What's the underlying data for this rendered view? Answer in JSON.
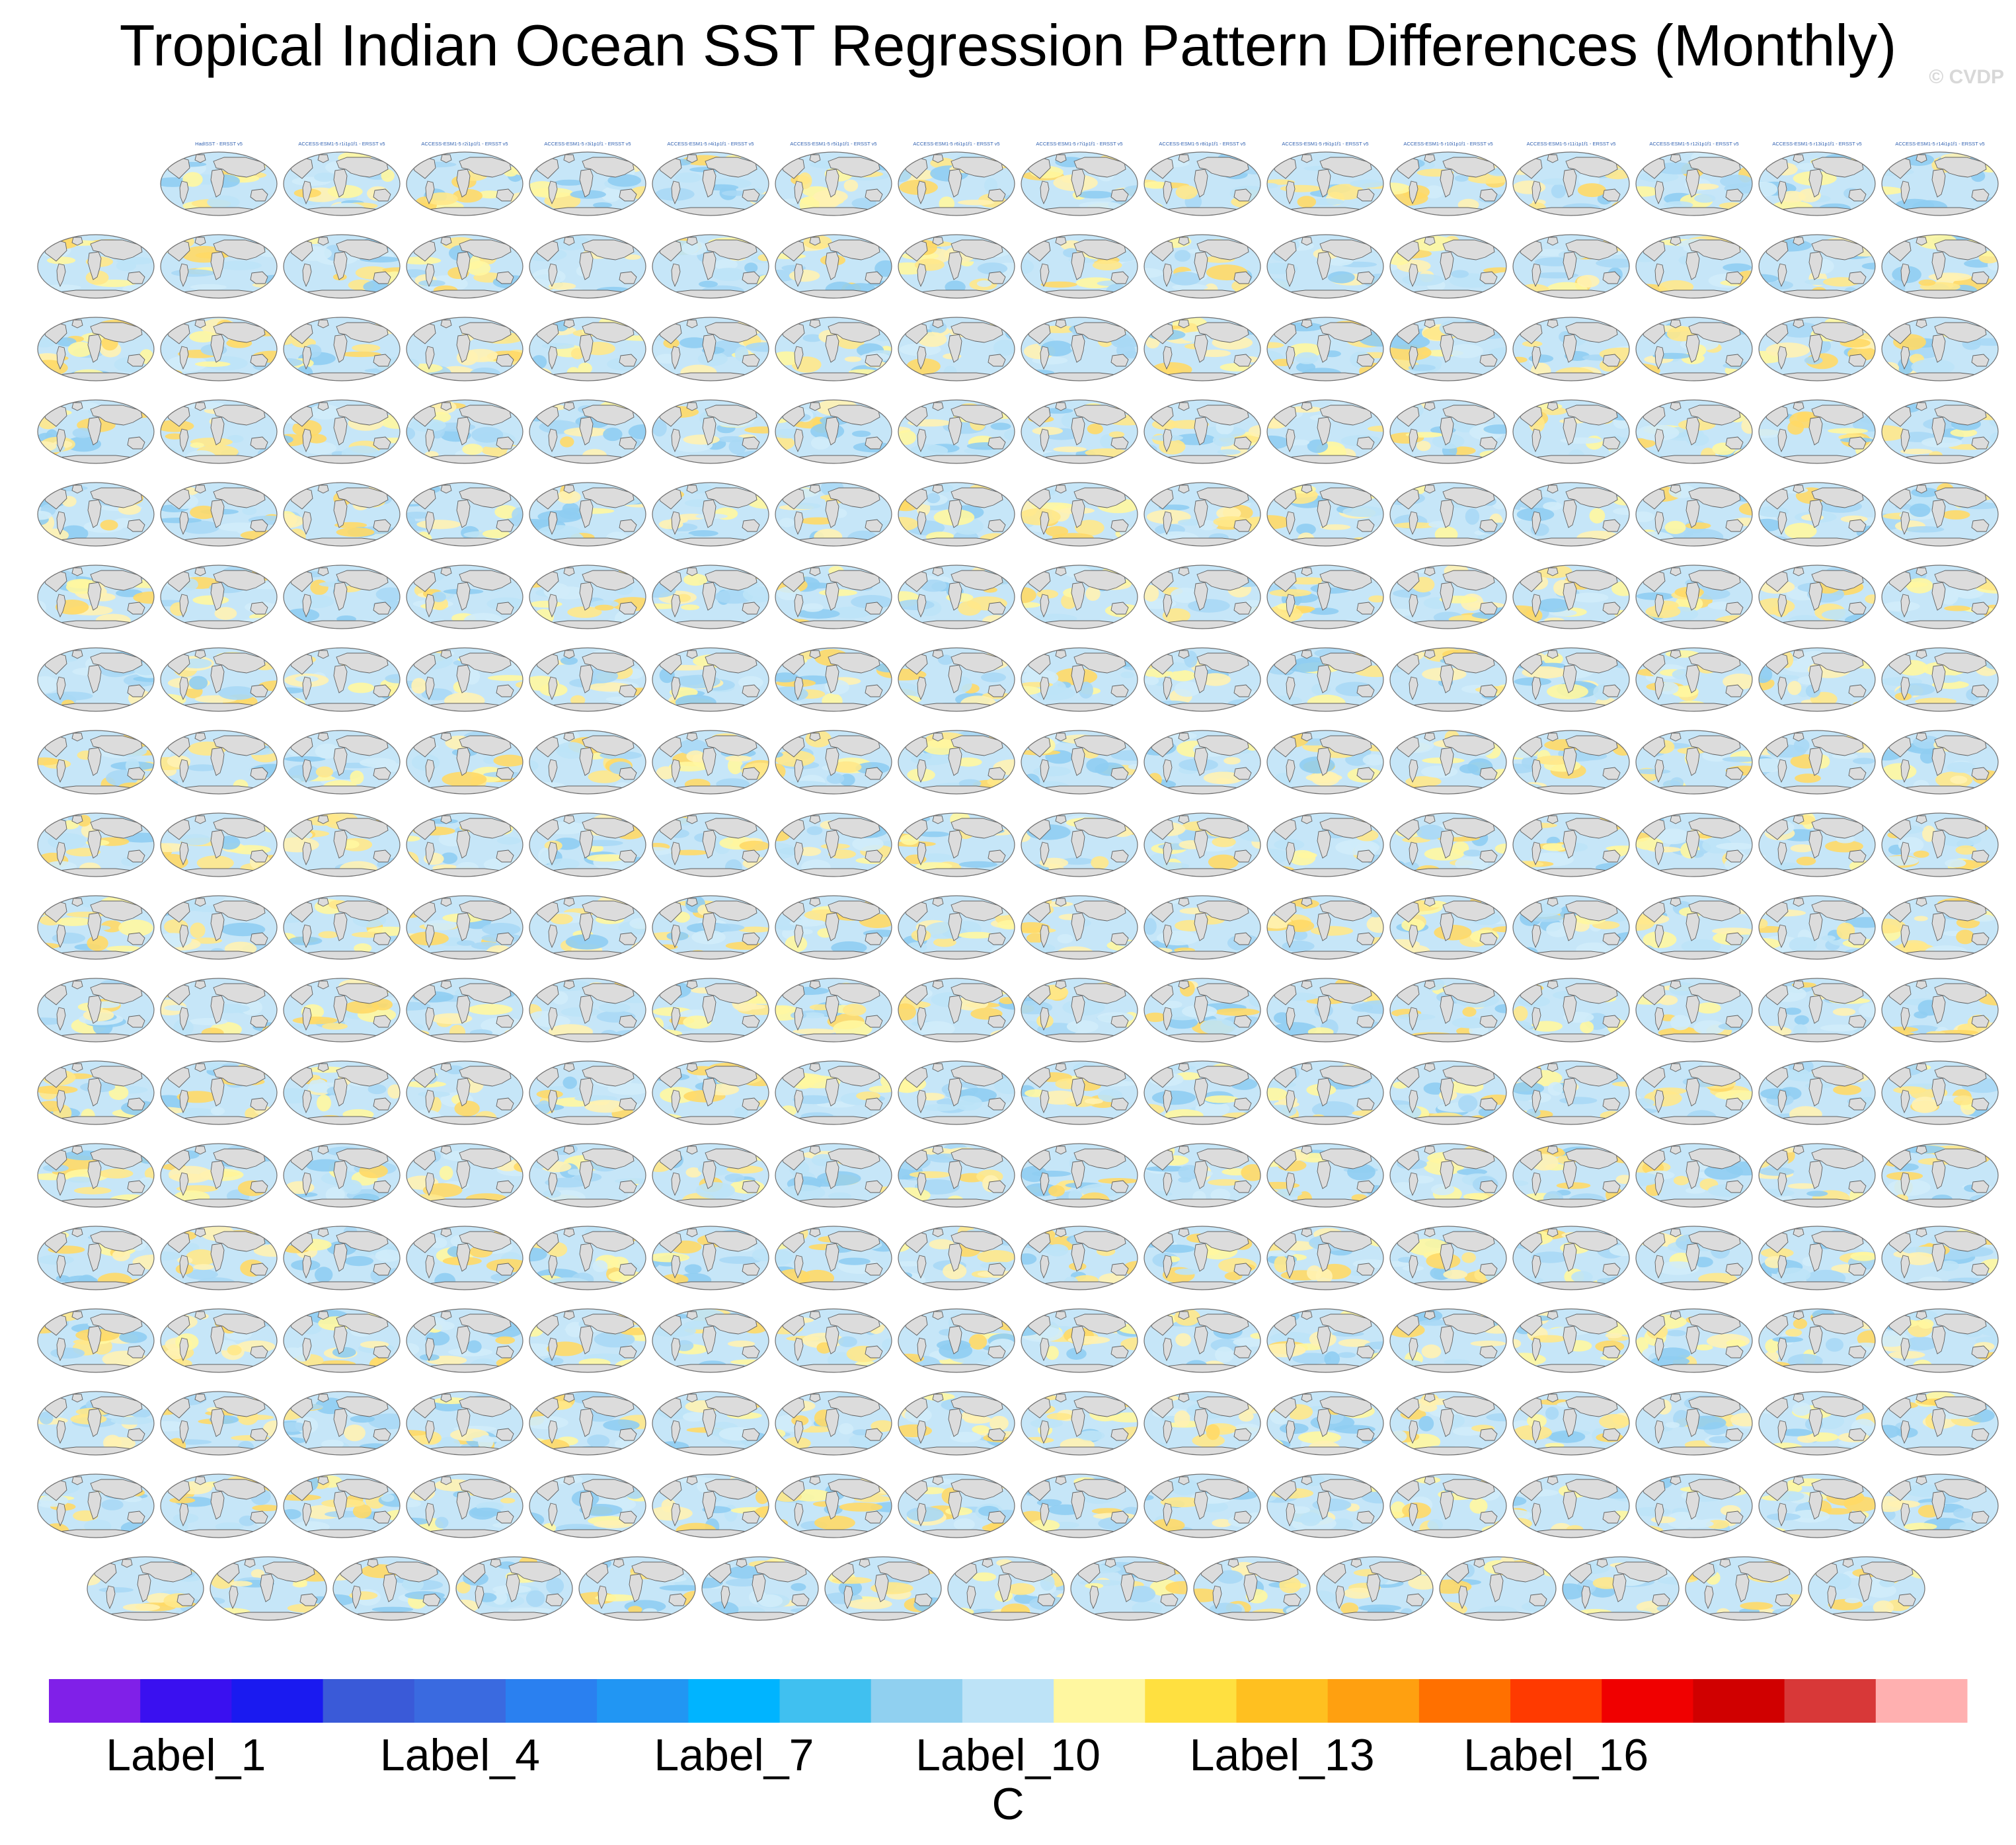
{
  "title": "Tropical Indian Ocean SST Regression Pattern Differences (Monthly)",
  "watermark": "© CVDP",
  "chart_data": {
    "type": "heatmap",
    "title": "Tropical Indian Ocean SST Regression Pattern Differences (Monthly)",
    "panel_layout": {
      "rows": [
        15,
        16,
        16,
        16,
        16,
        16,
        16,
        16,
        16,
        16,
        16,
        16,
        16,
        16,
        16,
        16,
        16,
        15
      ]
    },
    "panel_titles": [
      "HadISST - ERSST v5",
      "ACCESS-ESM1-5 r1i1p1f1 - ERSST v5",
      "ACCESS-ESM1-5 r2i1p1f1 - ERSST v5",
      "ACCESS-ESM1-5 r3i1p1f1 - ERSST v5",
      "ACCESS-ESM1-5 r4i1p1f1 - ERSST v5",
      "ACCESS-ESM1-5 r5i1p1f1 - ERSST v5",
      "ACCESS-ESM1-5 r6i1p1f1 - ERSST v5",
      "ACCESS-ESM1-5 r7i1p1f1 - ERSST v5",
      "ACCESS-ESM1-5 r8i1p1f1 - ERSST v5",
      "ACCESS-ESM1-5 r9i1p1f1 - ERSST v5",
      "ACCESS-ESM1-5 r10i1p1f1 - ERSST v5",
      "ACCESS-ESM1-5 r11i1p1f1 - ERSST v5",
      "ACCESS-ESM1-5 r12i1p1f1 - ERSST v5",
      "ACCESS-ESM1-5 r13i1p1f1 - ERSST v5",
      "ACCESS-ESM1-5 r14i1p1f1 - ERSST v5"
    ],
    "colorbar": {
      "colors": [
        "#8020e8",
        "#3a10f0",
        "#1a1af0",
        "#3a5ad8",
        "#3a6ae0",
        "#2a80f0",
        "#2196f3",
        "#00b4ff",
        "#40c0f0",
        "#90d0f0",
        "#bde3f7",
        "#fff7a0",
        "#ffe040",
        "#ffc020",
        "#ffa010",
        "#ff7000",
        "#ff3a00",
        "#f00000",
        "#d00000",
        "#d83838",
        "#ffb0b0"
      ],
      "labels": [
        "Label_1",
        "Label_4",
        "Label_7",
        "Label_10",
        "Label_13",
        "Label_16"
      ],
      "unit": "C"
    }
  }
}
